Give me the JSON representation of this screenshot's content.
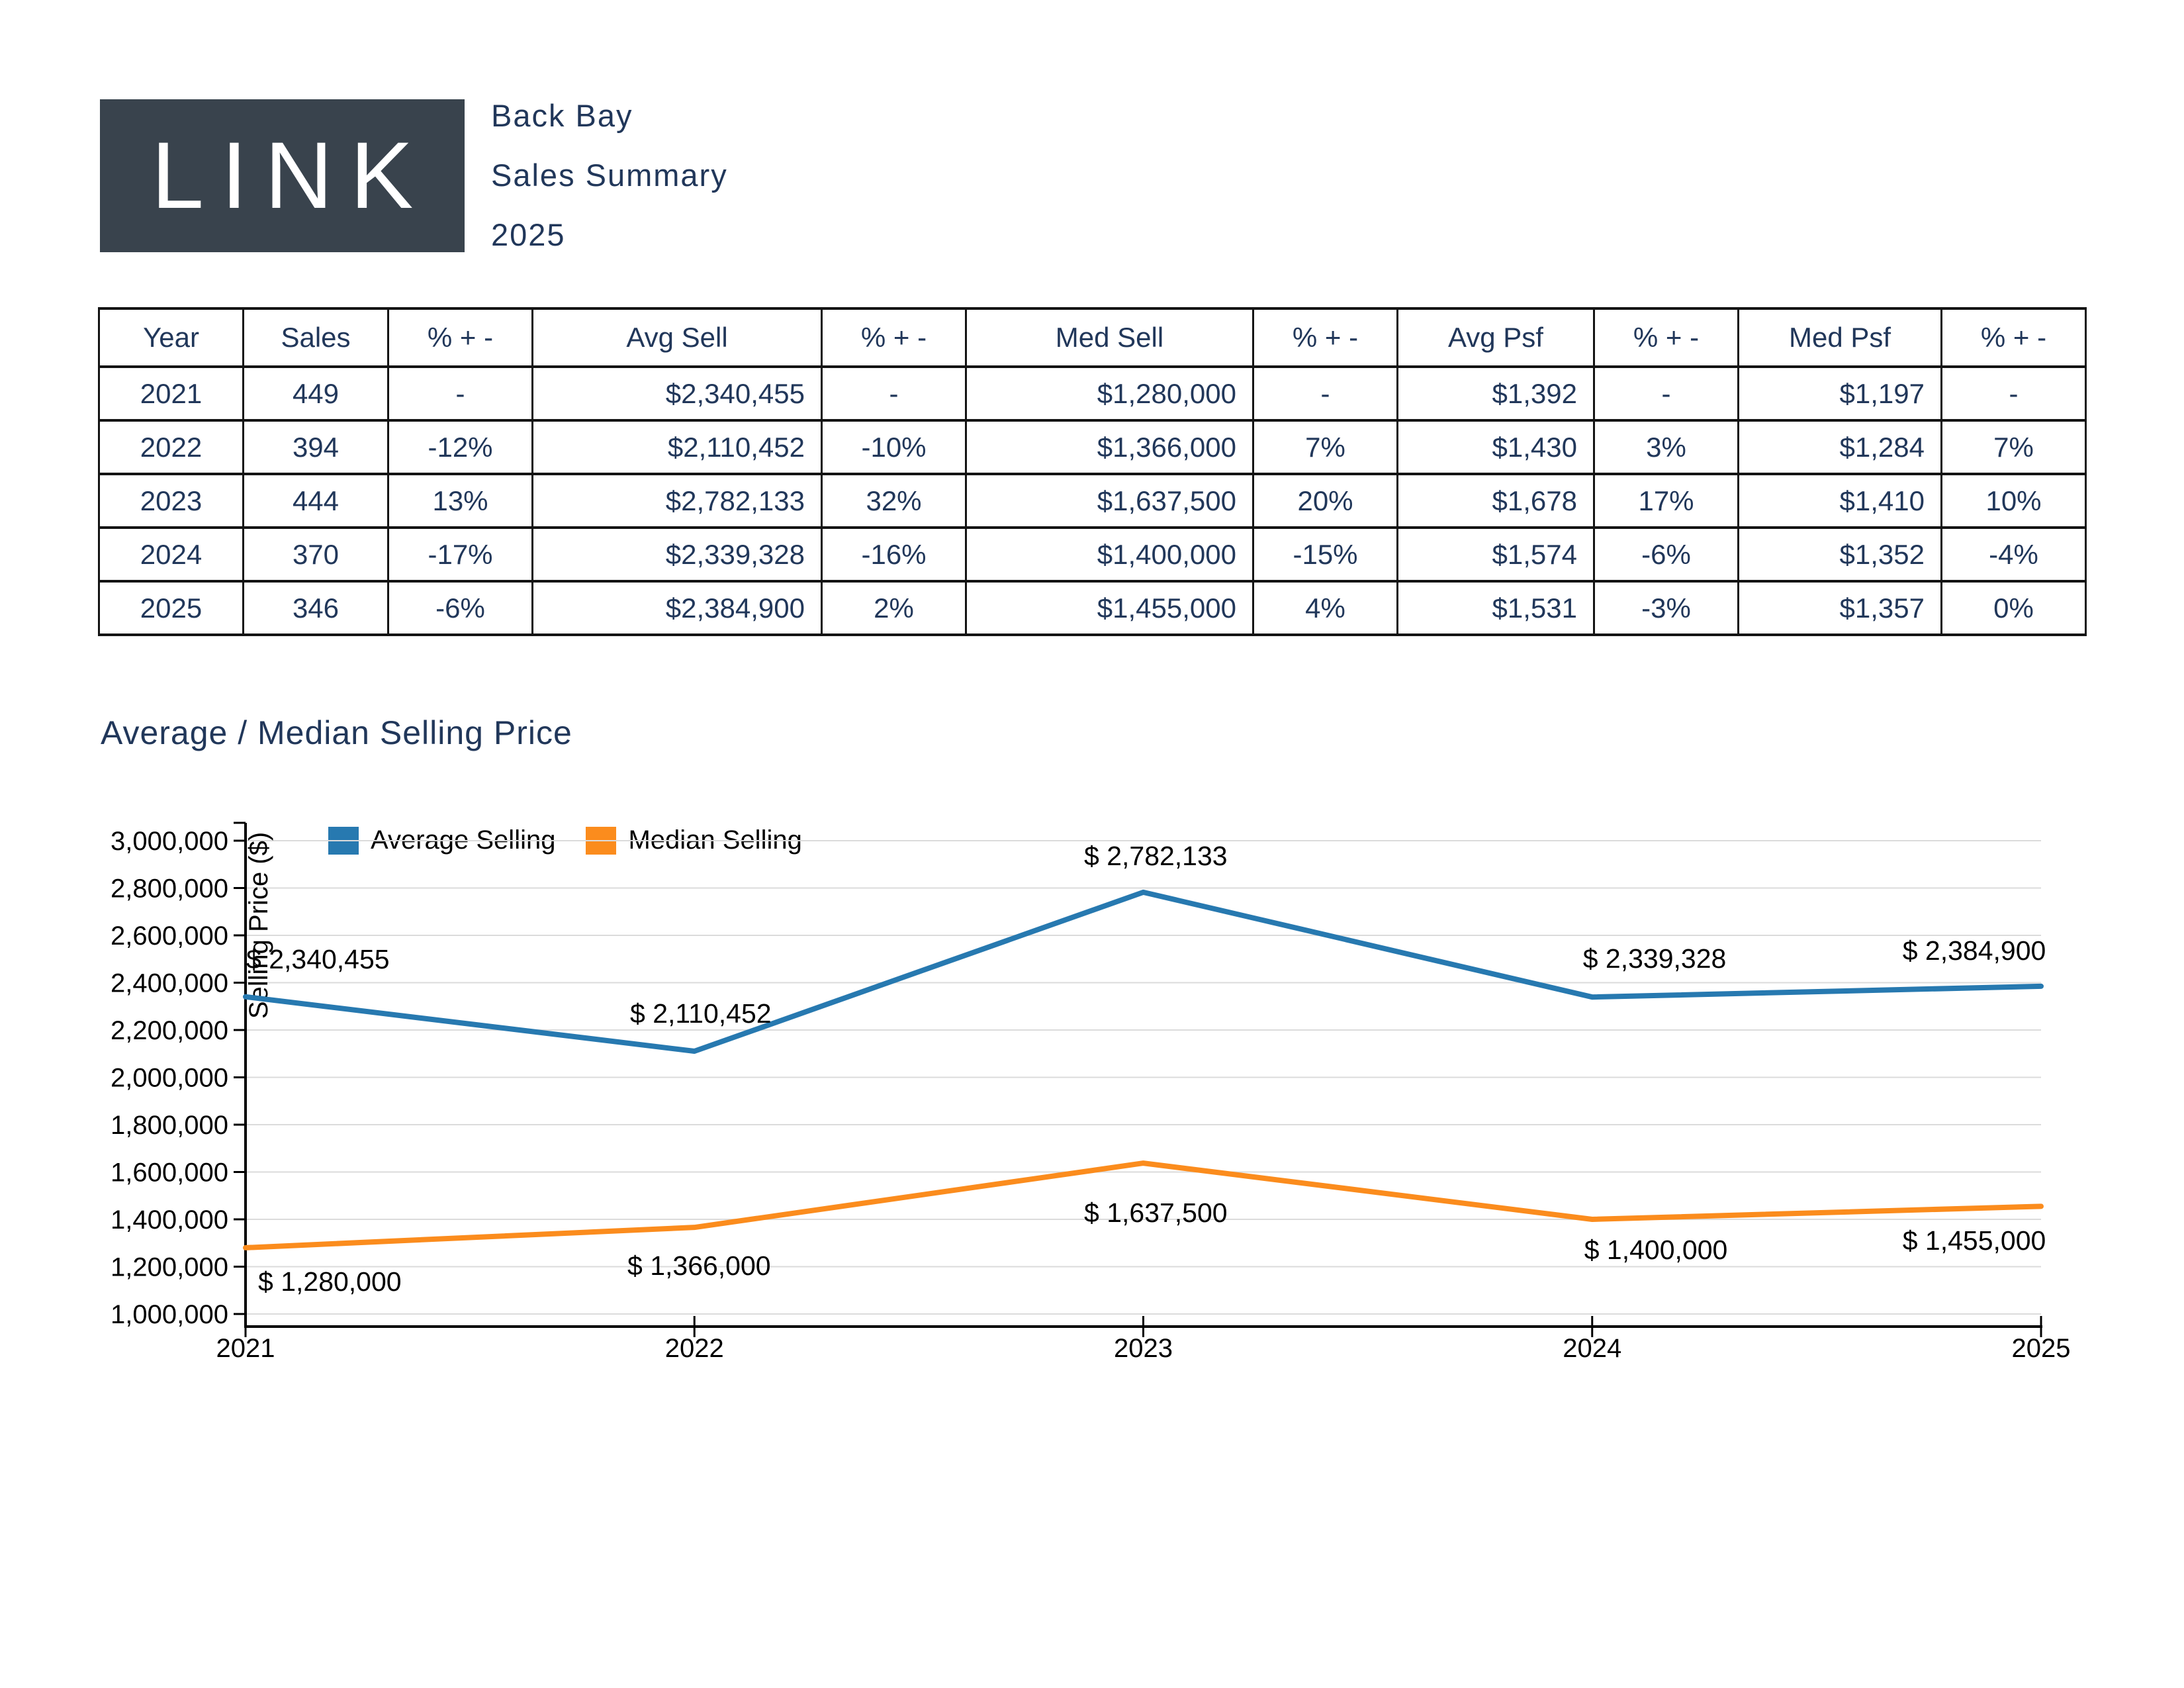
{
  "header": {
    "logo_text": "LINK",
    "region": "Back Bay",
    "report": "Sales Summary",
    "year": "2025"
  },
  "table": {
    "columns": [
      "Year",
      "Sales",
      "% + -",
      "Avg Sell",
      "% + -",
      "Med Sell",
      "% + -",
      "Avg Psf",
      "% + -",
      "Med Psf",
      "% + -"
    ],
    "rows": [
      [
        "2021",
        "449",
        "-",
        "$2,340,455",
        "-",
        "$1,280,000",
        "-",
        "$1,392",
        "-",
        "$1,197",
        "-"
      ],
      [
        "2022",
        "394",
        "-12%",
        "$2,110,452",
        "-10%",
        "$1,366,000",
        "7%",
        "$1,430",
        "3%",
        "$1,284",
        "7%"
      ],
      [
        "2023",
        "444",
        "13%",
        "$2,782,133",
        "32%",
        "$1,637,500",
        "20%",
        "$1,678",
        "17%",
        "$1,410",
        "10%"
      ],
      [
        "2024",
        "370",
        "-17%",
        "$2,339,328",
        "-16%",
        "$1,400,000",
        "-15%",
        "$1,574",
        "-6%",
        "$1,352",
        "-4%"
      ],
      [
        "2025",
        "346",
        "-6%",
        "$2,384,900",
        "2%",
        "$1,455,000",
        "4%",
        "$1,531",
        "-3%",
        "$1,357",
        "0%"
      ]
    ]
  },
  "section_title": "Average / Median Selling Price",
  "chart_data": {
    "type": "line",
    "title": "Average / Median Selling Price",
    "x": [
      "2021",
      "2022",
      "2023",
      "2024",
      "2025"
    ],
    "series": [
      {
        "name": "Average Selling",
        "color": "#2779B0",
        "values": [
          2340455,
          2110452,
          2782133,
          2339328,
          2384900
        ],
        "labels": [
          "$ 2,340,455",
          "$ 2,110,452",
          "$ 2,782,133",
          "$ 2,339,328",
          "$ 2,384,900"
        ]
      },
      {
        "name": "Median Selling",
        "color": "#FB8C1D",
        "values": [
          1280000,
          1366000,
          1637500,
          1400000,
          1455000
        ],
        "labels": [
          "$ 1,280,000",
          "$ 1,366,000",
          "$ 1,637,500",
          "$ 1,400,000",
          "$ 1,455,000"
        ]
      }
    ],
    "ylabel": "Selling Price ($)",
    "ylim": [
      1000000,
      3000000
    ],
    "ytick_step": 200000,
    "ytick_labels": [
      "1,000,000",
      "1,200,000",
      "1,400,000",
      "1,600,000",
      "1,800,000",
      "2,000,000",
      "2,200,000",
      "2,400,000",
      "2,600,000",
      "2,800,000",
      "3,000,000"
    ],
    "legend_position": "top-left",
    "grid": "horizontal"
  },
  "colors": {
    "navy": "#21375A",
    "logo_bg": "#39434D",
    "grid": "#DBDBDB",
    "axis": "#000000",
    "chart_text": "#000000"
  }
}
